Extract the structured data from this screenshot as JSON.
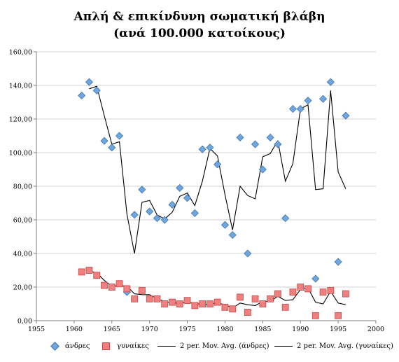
{
  "chart_data": {
    "type": "scatter",
    "title_lines": [
      "Απλή & επικίνδυνη σωματική βλάβη",
      "(ανά 100.000 κατοίκους)"
    ],
    "xlim": [
      1955,
      2000
    ],
    "ylim": [
      0,
      160
    ],
    "x_ticks": [
      "1955",
      "1960",
      "1965",
      "1970",
      "1975",
      "1980",
      "1985",
      "1990",
      "1995",
      "2000"
    ],
    "y_ticks": [
      "0,00",
      "20,00",
      "40,00",
      "60,00",
      "80,00",
      "100,00",
      "120,00",
      "140,00",
      "160,00"
    ],
    "grid": true,
    "legend_position": "bottom",
    "x": [
      1961,
      1962,
      1963,
      1964,
      1965,
      1966,
      1967,
      1968,
      1969,
      1970,
      1971,
      1972,
      1973,
      1974,
      1975,
      1976,
      1977,
      1978,
      1979,
      1980,
      1981,
      1982,
      1983,
      1984,
      1985,
      1986,
      1987,
      1988,
      1989,
      1990,
      1991,
      1992,
      1993,
      1994,
      1995,
      1996
    ],
    "series": [
      {
        "name": "άνδρες",
        "marker": "diamond",
        "color": "#6fa6dd",
        "values": [
          134,
          142,
          137,
          107,
          103,
          110,
          17,
          63,
          78,
          65,
          61,
          60,
          69,
          79,
          73,
          64,
          102,
          103,
          93,
          57,
          51,
          109,
          40,
          105,
          90,
          109,
          105,
          61,
          126,
          126,
          131,
          25,
          132,
          142,
          35,
          122
        ]
      },
      {
        "name": "γυναίκες",
        "marker": "square",
        "color": "#f08080",
        "values": [
          29,
          30,
          27,
          21,
          20,
          22,
          19,
          13,
          18,
          13,
          13,
          10,
          11,
          10,
          12,
          9,
          10,
          10,
          11,
          8,
          7,
          14,
          5,
          13,
          10,
          13,
          16,
          8,
          17,
          20,
          19,
          3,
          17,
          18,
          3,
          16
        ]
      },
      {
        "name": "2 per. Mov. Avg. (άνδρες)",
        "type": "line",
        "of_series": "άνδρες",
        "color": "#000000"
      },
      {
        "name": "2 per. Mov. Avg. (γυναίκες)",
        "type": "line",
        "of_series": "γυναίκες",
        "color": "#000000"
      }
    ]
  }
}
